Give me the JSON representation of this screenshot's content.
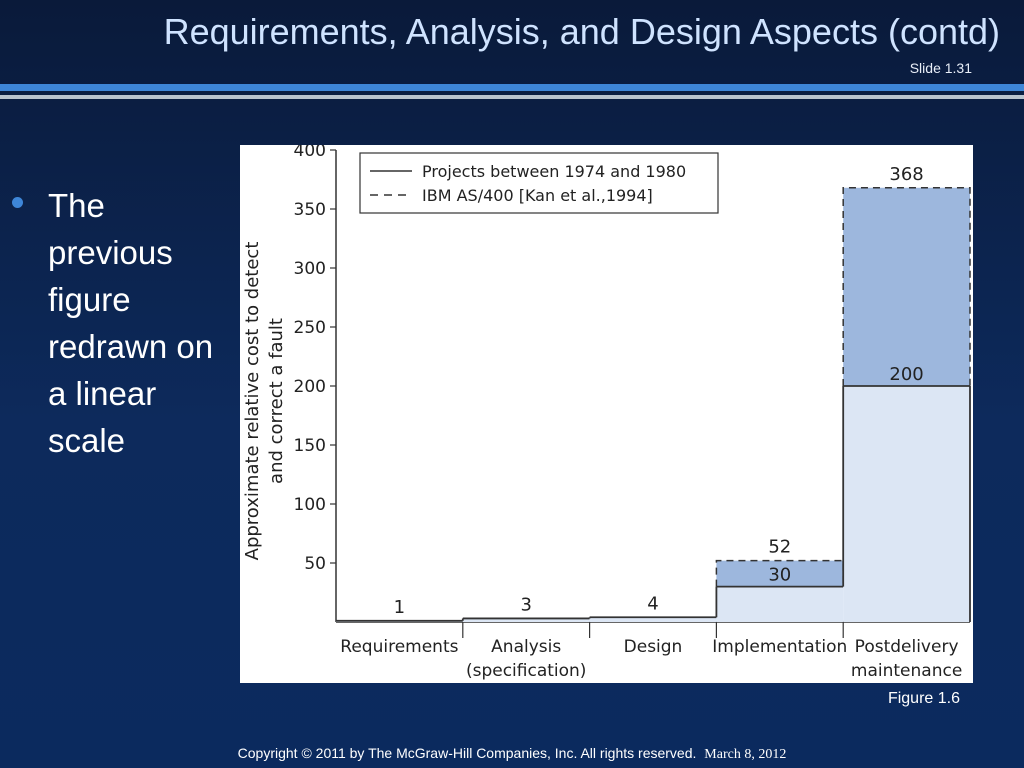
{
  "slide": {
    "title": "Requirements, Analysis, and Design Aspects (contd)",
    "number": "Slide 1.31",
    "bullet": "The previous figure redrawn on a linear scale",
    "caption": "Figure 1.6",
    "footer": "Copyright © 2011 by The McGraw-Hill Companies, Inc.  All rights reserved.",
    "date": "March 8, 2012"
  },
  "chart_data": {
    "type": "bar",
    "ylabel_lines": [
      "Approximate relative cost to detect",
      "and correct a fault"
    ],
    "ylim": [
      0,
      400
    ],
    "yticks": [
      50,
      100,
      150,
      200,
      250,
      300,
      350,
      400
    ],
    "categories": [
      [
        "Requirements"
      ],
      [
        "Analysis",
        "(specification)"
      ],
      [
        "Design"
      ],
      [
        "Implementation"
      ],
      [
        "Postdelivery",
        "maintenance"
      ]
    ],
    "series": [
      {
        "name": "Projects between 1974 and 1980",
        "style": "solid",
        "values": [
          1,
          3,
          4,
          30,
          200
        ]
      },
      {
        "name": "IBM AS/400 [Kan et al.,1994]",
        "style": "dashed",
        "values": [
          null,
          null,
          null,
          52,
          368
        ]
      }
    ],
    "legend": "top-left",
    "colors": {
      "base": "#dce6f4",
      "extra": "#9db7dd",
      "line": "#333333"
    }
  }
}
